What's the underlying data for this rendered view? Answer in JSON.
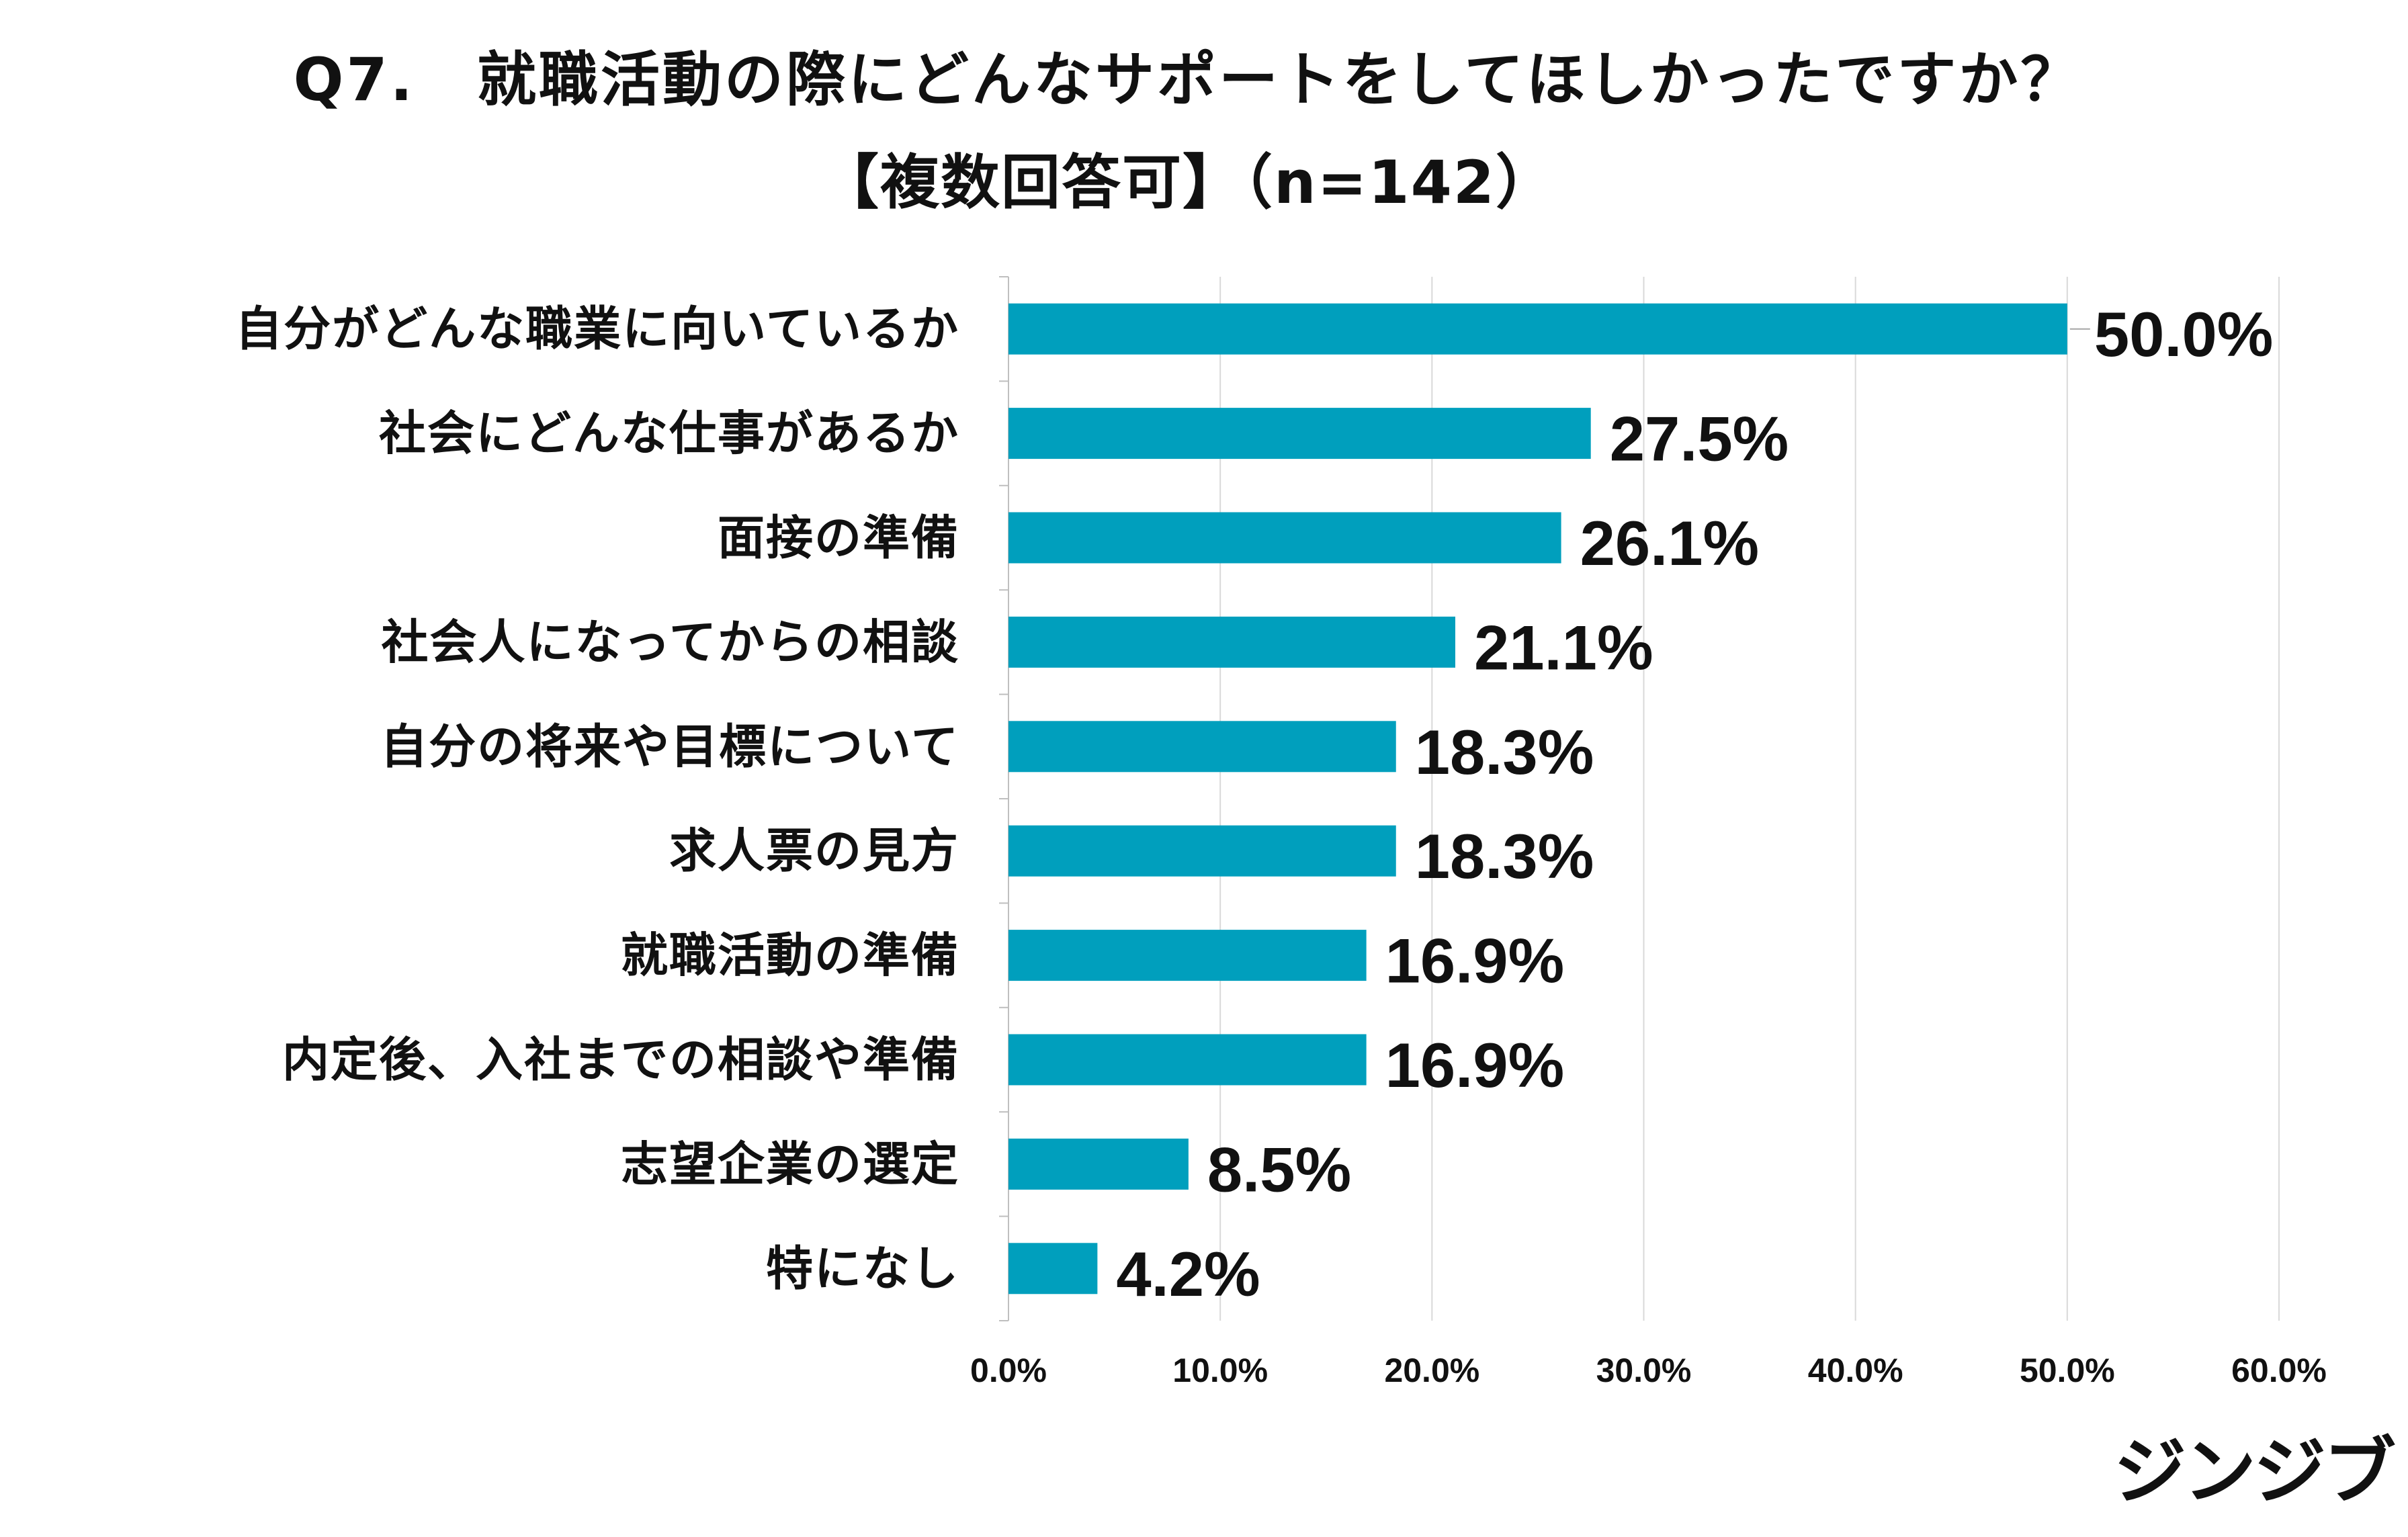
{
  "title": {
    "line1": "Q7.　就職活動の際にどんなサポートをしてほしかったですか？",
    "line2": "【複数回答可】（n=142）"
  },
  "chart_data": {
    "type": "bar",
    "orientation": "horizontal",
    "categories": [
      "自分がどんな職業に向いているか",
      "社会にどんな仕事があるか",
      "面接の準備",
      "社会人になってからの相談",
      "自分の将来や目標について",
      "求人票の見方",
      "就職活動の準備",
      "内定後、入社までの相談や準備",
      "志望企業の選定",
      "特になし"
    ],
    "values": [
      50.0,
      27.5,
      26.1,
      21.1,
      18.3,
      18.3,
      16.9,
      16.9,
      8.5,
      4.2
    ],
    "data_labels": [
      "50.0%",
      "27.5%",
      "26.1%",
      "21.1%",
      "18.3%",
      "18.3%",
      "16.9%",
      "16.9%",
      "8.5%",
      "4.2%"
    ],
    "x_ticks": [
      0,
      10,
      20,
      30,
      40,
      50,
      60
    ],
    "x_tick_labels": [
      "0.0%",
      "10.0%",
      "20.0%",
      "30.0%",
      "40.0%",
      "50.0%",
      "60.0%"
    ],
    "xlim": [
      0,
      60
    ],
    "grid": "vertical",
    "legend": "none",
    "bar_color": "#009fbd",
    "gridline_color": "#d9d9d9",
    "axis_color": "#bfbfbf"
  },
  "logo": {
    "text": "ジンジブ"
  }
}
